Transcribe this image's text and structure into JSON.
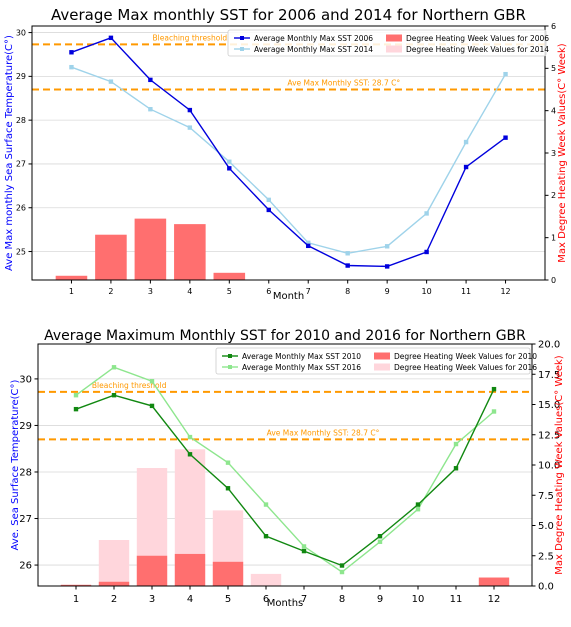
{
  "colors": {
    "sst_2006": "#0000dd",
    "sst_2014": "#9fd3ea",
    "dhw_2006": "#ff6f6f",
    "dhw_2014": "#ffd6dc",
    "sst_2010": "#118811",
    "sst_2016": "#8ee68e",
    "dhw_2010": "#ff6f6f",
    "dhw_2016": "#ffd6dc",
    "threshold": "#ff9900",
    "left_axis_label_top": "#0000ff",
    "left_axis_label_bottom": "#0000ff",
    "right_axis_label": "#ff0000"
  },
  "chart_data": [
    {
      "type": "bar",
      "title": "Average Max monthly SST for 2006 and 2014 for Northern GBR",
      "xlabel": "Month",
      "ylabel": "Ave Max monthly Sea Surface Temperature(C°)",
      "y2label": "Max Degree Heating Week Values(C° Week)",
      "categories": [
        "1",
        "2",
        "3",
        "4",
        "5",
        "6",
        "7",
        "8",
        "9",
        "10",
        "11",
        "12"
      ],
      "xlim": [
        0,
        13
      ],
      "ylim": [
        24.35,
        30.15
      ],
      "yticks": [
        "25",
        "26",
        "27",
        "28",
        "29",
        "30"
      ],
      "y2lim": [
        0,
        6
      ],
      "y2ticks": [
        "0",
        "1",
        "2",
        "3",
        "4",
        "5",
        "6"
      ],
      "lines": [
        {
          "name": "Average Monthly Max SST 2006",
          "color_key": "sst_2006",
          "values": [
            29.55,
            29.88,
            28.92,
            28.23,
            26.9,
            25.95,
            25.13,
            24.68,
            24.66,
            24.99,
            26.93,
            27.6
          ]
        },
        {
          "name": "Average Monthly Max SST 2014",
          "color_key": "sst_2014",
          "values": [
            29.21,
            28.88,
            28.25,
            27.83,
            27.05,
            26.18,
            25.2,
            24.96,
            25.12,
            25.87,
            27.5,
            29.05
          ]
        }
      ],
      "bars": [
        {
          "name": "Degree Heating Week Values for 2006",
          "color_key": "dhw_2006",
          "values": [
            0.1,
            1.07,
            1.45,
            1.32,
            0.17,
            0,
            0,
            0,
            0,
            0,
            0,
            0
          ]
        },
        {
          "name": "Degree Heating Week Values for 2014",
          "color_key": "dhw_2014",
          "values": [
            0,
            0,
            0,
            0,
            0,
            0,
            0,
            0,
            0,
            0,
            0,
            0
          ]
        }
      ],
      "reference_lines": [
        {
          "label": "Bleaching threshold",
          "value": 29.73
        },
        {
          "label": "Ave Max Monthly SST: 28.7 C°",
          "value": 28.7
        }
      ],
      "legend": "top-right",
      "grid": "horizontal"
    },
    {
      "type": "bar",
      "title": "Average Maximum Monthly SST for 2010 and 2016 for Northern GBR",
      "xlabel": "Months",
      "ylabel": "Ave. Sea Surface Temperature(C°)",
      "y2label": "Max Degree Heating Week Values(C° Week)",
      "categories": [
        "1",
        "2",
        "3",
        "4",
        "5",
        "6",
        "7",
        "8",
        "9",
        "10",
        "11",
        "12"
      ],
      "xlim": [
        0,
        13
      ],
      "ylim": [
        25.55,
        30.75
      ],
      "yticks": [
        "26",
        "27",
        "28",
        "29",
        "30"
      ],
      "y2lim": [
        0,
        20
      ],
      "y2ticks": [
        "0.0",
        "2.5",
        "5.0",
        "7.5",
        "10.0",
        "12.5",
        "15.0",
        "17.5",
        "20.0"
      ],
      "lines": [
        {
          "name": "Average Monthly Max SST 2010",
          "color_key": "sst_2010",
          "values": [
            29.35,
            29.65,
            29.42,
            28.38,
            27.65,
            26.62,
            26.3,
            25.99,
            26.62,
            27.3,
            28.08,
            29.78
          ]
        },
        {
          "name": "Average Monthly Max SST 2016",
          "color_key": "sst_2016",
          "values": [
            29.65,
            30.25,
            29.95,
            28.75,
            28.2,
            27.3,
            26.4,
            25.85,
            26.5,
            27.2,
            28.6,
            29.3
          ]
        }
      ],
      "bars": [
        {
          "name": "Degree Heating Week Values for 2010",
          "color_key": "dhw_2010",
          "values": [
            0.1,
            0.35,
            2.5,
            2.65,
            2.0,
            0,
            0,
            0,
            0,
            0,
            0,
            0.7
          ]
        },
        {
          "name": "Degree Heating Week Values for 2016",
          "color_key": "dhw_2016",
          "values": [
            0,
            3.8,
            9.75,
            11.3,
            6.25,
            1.0,
            0,
            0,
            0,
            0,
            0,
            0
          ]
        }
      ],
      "reference_lines": [
        {
          "label": "Bleaching threshold",
          "value": 29.72
        },
        {
          "label": "Ave Max Monthly SST: 28.7 C°",
          "value": 28.7
        }
      ],
      "legend": "top-right",
      "grid": "horizontal"
    }
  ]
}
